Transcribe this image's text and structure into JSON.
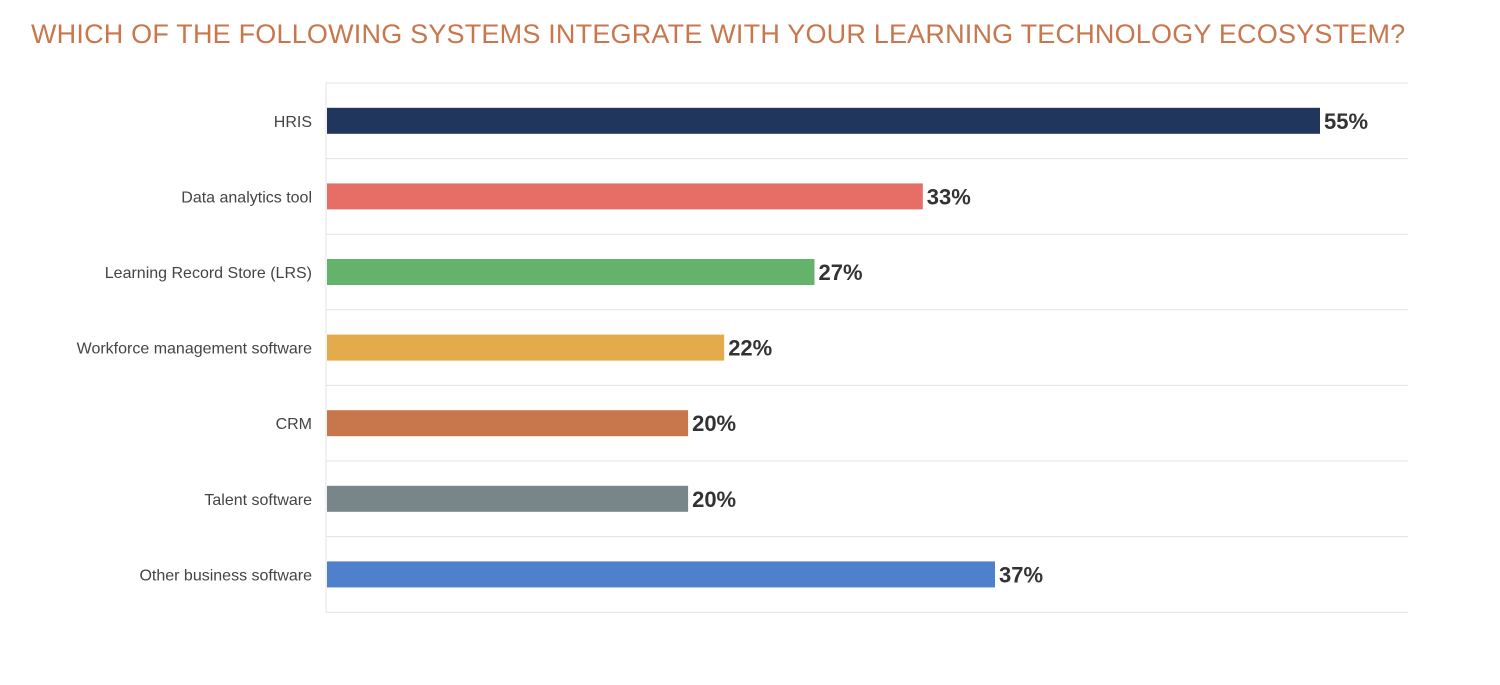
{
  "chart_data": {
    "type": "bar",
    "orientation": "horizontal",
    "title": "WHICH OF THE FOLLOWING SYSTEMS INTEGRATE WITH YOUR LEARNING TECHNOLOGY ECOSYSTEM?",
    "categories": [
      "HRIS",
      "Data analytics tool",
      "Learning Record Store (LRS)",
      "Workforce management software",
      "CRM",
      "Talent software",
      "Other business software"
    ],
    "values": [
      55,
      33,
      27,
      22,
      20,
      20,
      37
    ],
    "value_labels": [
      "55%",
      "33%",
      "27%",
      "22%",
      "20%",
      "20%",
      "37%"
    ],
    "bar_colors": [
      "#21365c",
      "#e66e67",
      "#65b26a",
      "#e3ab4b",
      "#c8774c",
      "#78868a",
      "#4f80cc"
    ],
    "xlim": [
      0,
      60
    ],
    "grid": "horizontal row separators",
    "legend": "none"
  },
  "colors": {
    "title": "#c8774c",
    "grid": "#e3e3e3",
    "category_text": "#444444",
    "value_text": "#333333"
  }
}
